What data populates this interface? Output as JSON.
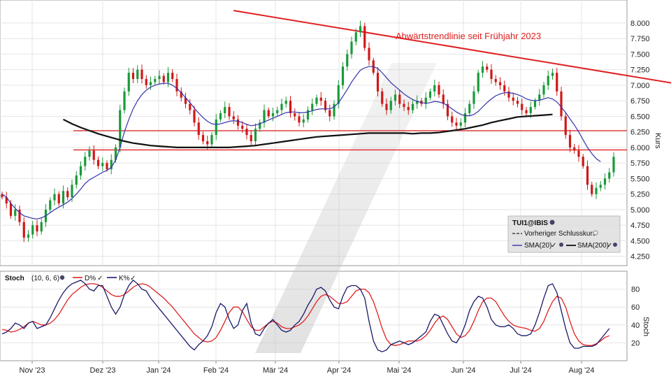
{
  "chart_data": [
    {
      "type": "candlestick",
      "xlabel": "",
      "ylabel": "Kurs",
      "ylim": [
        4.1,
        8.1
      ],
      "x_ticks": [
        "Nov '23",
        "Dez '23",
        "Jan '24",
        "Feb '24",
        "Mär '24",
        "Apr '24",
        "Mai '24",
        "Jun '24",
        "Jul '24",
        "Aug '24"
      ],
      "y_ticks": [
        "8.000",
        "7.750",
        "7.500",
        "7.250",
        "7.000",
        "6.750",
        "6.500",
        "6.250",
        "6.000",
        "5.750",
        "5.500",
        "5.250",
        "5.000",
        "4.750",
        "4.500",
        "4.250"
      ],
      "y_tick_values": [
        8.0,
        7.75,
        7.5,
        7.25,
        7.0,
        6.75,
        6.5,
        6.25,
        6.0,
        5.75,
        5.5,
        5.25,
        5.0,
        4.75,
        4.5,
        4.25
      ],
      "grid": true,
      "legend_position": "bottom-right",
      "legend": {
        "symbol": "TUI1@IBIS",
        "prev_close_label": "Vorheriger Schlusskurs",
        "sma20_label": "SMA(20)",
        "sma200_label": "SMA(200)"
      },
      "annotation": "Abwärtstrendlinie seit Frühjahr 2023",
      "horizontal_lines": [
        6.27,
        5.96
      ],
      "trendline": {
        "from": {
          "month": 3.3,
          "value": 8.2
        },
        "to": {
          "month": 10.7,
          "value": 7.0
        }
      },
      "colors": {
        "up": "#1a9a3a",
        "down": "#d01818",
        "sma20": "#3333aa",
        "sma200": "#111111",
        "lines": "#e02020"
      },
      "closes": [
        5.2,
        5.1,
        4.9,
        5.0,
        4.8,
        4.55,
        4.6,
        4.75,
        4.65,
        4.8,
        5.0,
        5.15,
        5.25,
        5.1,
        5.3,
        5.2,
        5.4,
        5.55,
        5.7,
        5.85,
        5.95,
        5.8,
        5.7,
        5.75,
        5.65,
        5.8,
        6.0,
        6.6,
        6.9,
        7.2,
        7.1,
        7.25,
        7.1,
        7.0,
        7.05,
        7.1,
        7.15,
        7.05,
        7.2,
        7.1,
        6.9,
        6.8,
        6.7,
        6.6,
        6.4,
        6.2,
        6.1,
        6.05,
        6.2,
        6.45,
        6.55,
        6.65,
        6.5,
        6.45,
        6.35,
        6.3,
        6.2,
        6.1,
        6.3,
        6.4,
        6.6,
        6.5,
        6.55,
        6.6,
        6.7,
        6.75,
        6.55,
        6.5,
        6.4,
        6.45,
        6.6,
        6.7,
        6.8,
        6.75,
        6.6,
        6.5,
        6.7,
        7.0,
        7.3,
        7.5,
        7.7,
        7.85,
        7.95,
        7.6,
        7.4,
        7.2,
        6.9,
        6.7,
        6.6,
        6.75,
        6.85,
        6.7,
        6.65,
        6.6,
        6.7,
        6.75,
        6.7,
        6.8,
        6.9,
        7.0,
        6.85,
        6.7,
        6.5,
        6.4,
        6.35,
        6.4,
        6.55,
        6.7,
        6.9,
        7.2,
        7.3,
        7.25,
        7.1,
        7.05,
        7.0,
        6.9,
        6.8,
        6.75,
        6.7,
        6.6,
        6.55,
        6.65,
        6.75,
        6.85,
        7.0,
        7.15,
        7.2,
        6.9,
        6.5,
        6.2,
        6.0,
        5.95,
        5.85,
        5.7,
        5.4,
        5.25,
        5.35,
        5.4,
        5.5,
        5.6,
        5.85
      ],
      "sma20": [
        5.25,
        5.2,
        5.1,
        5.02,
        4.95,
        4.9,
        4.88,
        4.86,
        4.85,
        4.87,
        4.9,
        4.95,
        5.0,
        5.04,
        5.08,
        5.12,
        5.18,
        5.25,
        5.33,
        5.42,
        5.48,
        5.52,
        5.56,
        5.6,
        5.63,
        5.68,
        5.8,
        6.0,
        6.25,
        6.45,
        6.62,
        6.75,
        6.85,
        6.92,
        6.97,
        7.0,
        7.02,
        7.03,
        7.03,
        7.0,
        6.95,
        6.88,
        6.8,
        6.72,
        6.63,
        6.55,
        6.48,
        6.42,
        6.38,
        6.37,
        6.38,
        6.4,
        6.42,
        6.43,
        6.42,
        6.4,
        6.37,
        6.35,
        6.36,
        6.38,
        6.41,
        6.44,
        6.47,
        6.5,
        6.53,
        6.56,
        6.57,
        6.57,
        6.56,
        6.56,
        6.57,
        6.59,
        6.61,
        6.62,
        6.62,
        6.62,
        6.65,
        6.72,
        6.82,
        6.93,
        7.05,
        7.15,
        7.24,
        7.28,
        7.3,
        7.3,
        7.27,
        7.2,
        7.12,
        7.04,
        6.98,
        6.92,
        6.86,
        6.81,
        6.77,
        6.74,
        6.72,
        6.71,
        6.72,
        6.74,
        6.73,
        6.71,
        6.67,
        6.62,
        6.57,
        6.53,
        6.51,
        6.51,
        6.53,
        6.58,
        6.65,
        6.72,
        6.78,
        6.83,
        6.86,
        6.88,
        6.88,
        6.87,
        6.85,
        6.82,
        6.78,
        6.76,
        6.75,
        6.76,
        6.78,
        6.8,
        6.78,
        6.73,
        6.65,
        6.56,
        6.46,
        6.36,
        6.25,
        6.12,
        6.0,
        5.9,
        5.82,
        5.77
      ],
      "sma200": [
        6.45,
        6.38,
        6.32,
        6.27,
        6.22,
        6.18,
        6.14,
        6.1,
        6.07,
        6.05,
        6.03,
        6.02,
        6.01,
        6.0,
        6.0,
        6.0,
        6.0,
        6.0,
        6.0,
        6.0,
        6.01,
        6.02,
        6.03,
        6.05,
        6.07,
        6.09,
        6.11,
        6.13,
        6.15,
        6.17,
        6.18,
        6.19,
        6.2,
        6.21,
        6.22,
        6.23,
        6.23,
        6.23,
        6.23,
        6.23,
        6.22,
        6.23,
        6.23,
        6.24,
        6.26,
        6.28,
        6.3,
        6.33,
        6.36,
        6.4,
        6.43,
        6.46,
        6.49,
        6.5,
        6.51,
        6.52,
        6.53
      ],
      "sma200_start_index": 14,
      "sma200_step": 2
    },
    {
      "type": "line",
      "title": "Stoch",
      "params": "(10, 6, 6)",
      "ylabel": "Stoch",
      "ylim": [
        0,
        100
      ],
      "y_ticks": [
        "80",
        "60",
        "40",
        "20"
      ],
      "y_tick_values": [
        80,
        60,
        40,
        20
      ],
      "series": [
        {
          "name": "D%",
          "color": "#e02020",
          "values": [
            35,
            34,
            32,
            33,
            35,
            38,
            42,
            44,
            42,
            40,
            40,
            42,
            46,
            52,
            60,
            68,
            74,
            78,
            82,
            85,
            86,
            86,
            85,
            82,
            78,
            74,
            72,
            72,
            74,
            78,
            82,
            85,
            86,
            85,
            82,
            78,
            74,
            70,
            65,
            60,
            54,
            48,
            42,
            36,
            30,
            26,
            22,
            21,
            22,
            26,
            34,
            44,
            54,
            60,
            60,
            55,
            46,
            38,
            34,
            34,
            38,
            42,
            44,
            42,
            38,
            36,
            36,
            38,
            40,
            44,
            50,
            58,
            66,
            72,
            74,
            72,
            68,
            64,
            64,
            66,
            72,
            78,
            80,
            80,
            76,
            66,
            52,
            36,
            24,
            18,
            17,
            18,
            20,
            22,
            22,
            22,
            24,
            28,
            34,
            42,
            48,
            50,
            46,
            38,
            30,
            26,
            28,
            34,
            44,
            56,
            66,
            70,
            70,
            66,
            58,
            50,
            44,
            40,
            38,
            37,
            36,
            34,
            33,
            36,
            44,
            56,
            66,
            72,
            70,
            60,
            44,
            30,
            22,
            18,
            17,
            17,
            19,
            22,
            26,
            28
          ]
        },
        {
          "name": "K%",
          "color": "#1a1a6a",
          "values": [
            30,
            32,
            36,
            42,
            40,
            36,
            42,
            44,
            36,
            38,
            40,
            48,
            58,
            68,
            76,
            82,
            86,
            88,
            90,
            86,
            80,
            78,
            84,
            84,
            72,
            60,
            52,
            60,
            74,
            84,
            90,
            86,
            80,
            78,
            70,
            64,
            58,
            52,
            46,
            40,
            34,
            28,
            22,
            16,
            12,
            18,
            22,
            28,
            38,
            54,
            64,
            60,
            46,
            36,
            40,
            56,
            64,
            42,
            30,
            28,
            36,
            42,
            46,
            40,
            34,
            32,
            34,
            40,
            44,
            52,
            62,
            70,
            80,
            82,
            78,
            68,
            60,
            58,
            72,
            82,
            84,
            84,
            80,
            70,
            44,
            22,
            12,
            10,
            12,
            18,
            20,
            22,
            20,
            18,
            20,
            24,
            28,
            32,
            44,
            52,
            50,
            40,
            30,
            22,
            20,
            28,
            40,
            56,
            66,
            72,
            70,
            60,
            46,
            40,
            38,
            38,
            40,
            36,
            30,
            28,
            28,
            30,
            40,
            54,
            70,
            84,
            86,
            76,
            56,
            36,
            20,
            14,
            14,
            16,
            16,
            16,
            18,
            24,
            30,
            36
          ]
        }
      ]
    }
  ]
}
